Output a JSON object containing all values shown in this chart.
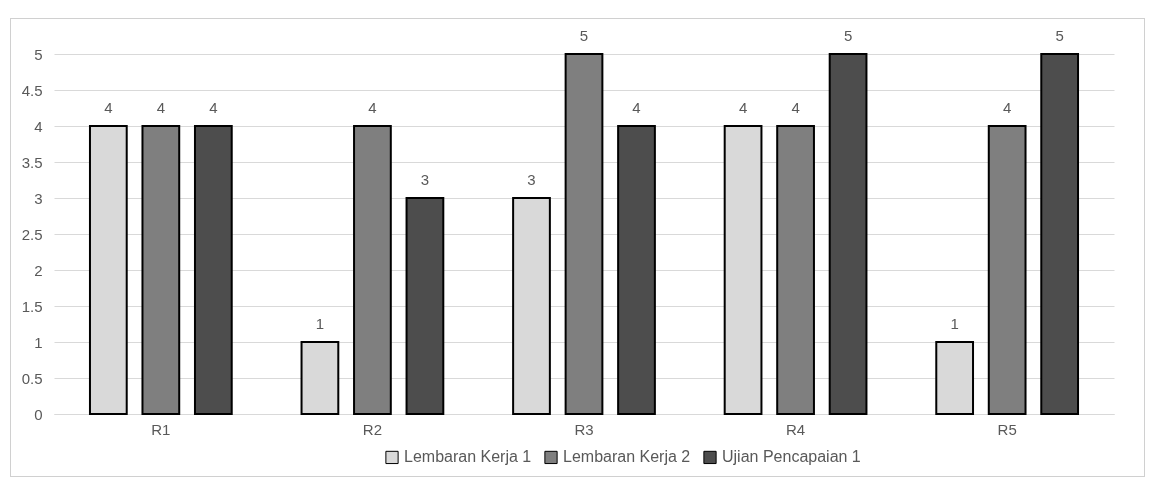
{
  "chart_data": {
    "type": "bar",
    "categories": [
      "R1",
      "R2",
      "R3",
      "R4",
      "R5"
    ],
    "series": [
      {
        "name": "Lembaran Kerja 1",
        "color": "#d9d9d9",
        "values": [
          4,
          1,
          3,
          4,
          1
        ]
      },
      {
        "name": "Lembaran Kerja 2",
        "color": "#7f7f7f",
        "values": [
          4,
          4,
          5,
          4,
          4
        ]
      },
      {
        "name": "Ujian Pencapaian 1",
        "color": "#4d4d4d",
        "values": [
          4,
          3,
          4,
          5,
          5
        ]
      }
    ],
    "ylim": [
      0,
      5
    ],
    "yticks": [
      0,
      0.5,
      1,
      1.5,
      2,
      2.5,
      3,
      3.5,
      4,
      4.5,
      5
    ],
    "grid": "y",
    "legend": "bottom",
    "data_labels": true
  }
}
